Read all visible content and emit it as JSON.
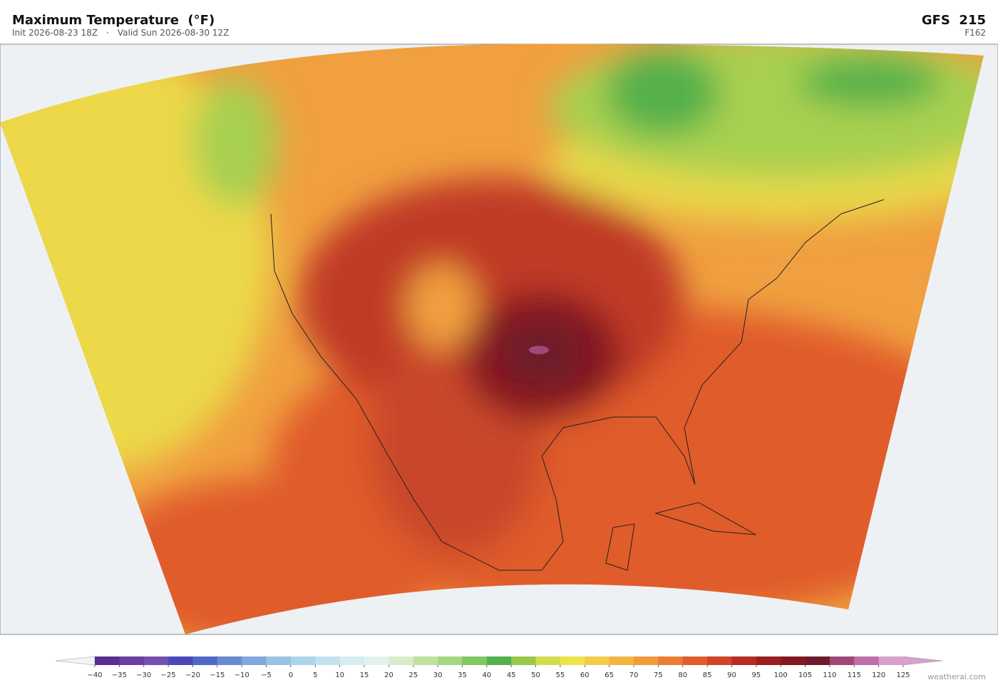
{
  "header": {
    "title": "Maximum Temperature  (°F)",
    "init": "Init 2026-08-23 18Z",
    "separator": "·",
    "valid": "Valid Sun 2026-08-30 12Z",
    "model": "GFS  215",
    "forecast_hour": "F162"
  },
  "colorbar": {
    "ticks": [
      {
        "value": -40,
        "label": "−40"
      },
      {
        "value": -35,
        "label": "−35"
      },
      {
        "value": -30,
        "label": "−30"
      },
      {
        "value": -25,
        "label": "−25"
      },
      {
        "value": -20,
        "label": "−20"
      },
      {
        "value": -15,
        "label": "−15"
      },
      {
        "value": -10,
        "label": "−10"
      },
      {
        "value": -5,
        "label": "−5"
      },
      0,
      5,
      10,
      15,
      20,
      25,
      30,
      35,
      40,
      45,
      50,
      55,
      60,
      65,
      70,
      75,
      80,
      85,
      90,
      95,
      100,
      105,
      110,
      115,
      120,
      125
    ],
    "colors": [
      "#5a2d91",
      "#6a3da0",
      "#7650b0",
      "#4a48b8",
      "#5068c8",
      "#6a8ad0",
      "#80a8dc",
      "#98c4e4",
      "#acd4ea",
      "#c2e2f0",
      "#d4ecf2",
      "#e4f2ee",
      "#d8eccc",
      "#c0e2a0",
      "#a4d880",
      "#80c860",
      "#54b04c",
      "#98c84c",
      "#d4dc4c",
      "#ece448",
      "#f4cc48",
      "#f4b440",
      "#f09a3c",
      "#ec7c34",
      "#e05c2c",
      "#d04428",
      "#b82c24",
      "#9c1e20",
      "#841820",
      "#6c1c2c",
      "#a04878",
      "#c070a8",
      "#d8a0cc"
    ],
    "under_color": "#f4f4f4",
    "over_color": "#d8a0cc"
  },
  "credit": "weatherai.com"
}
